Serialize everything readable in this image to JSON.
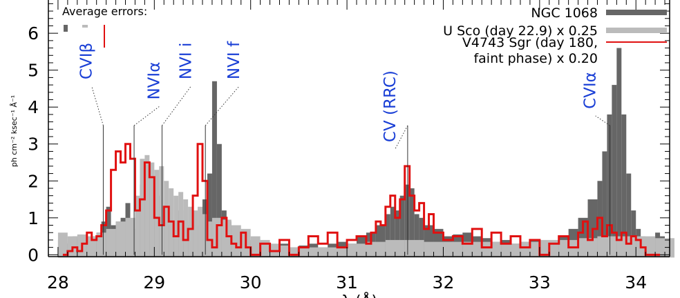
{
  "chart_data": {
    "type": "bar",
    "xlabel": "λ (Å)",
    "ylabel": "ph cm⁻² ksec⁻¹ Å⁻¹",
    "xlim": [
      27.9,
      34.35
    ],
    "ylim": [
      -0.05,
      6.9
    ],
    "x_ticks": [
      28,
      29,
      30,
      31,
      32,
      33,
      34
    ],
    "y_ticks": [
      0,
      1,
      2,
      3,
      4,
      5,
      6
    ],
    "errors_title": "Average errors:",
    "series": [
      {
        "name": "NGC 1068",
        "style": "filled-histogram",
        "color": "#666666",
        "x": [
          28.0,
          28.05,
          28.1,
          28.15,
          28.2,
          28.25,
          28.3,
          28.35,
          28.4,
          28.45,
          28.5,
          28.55,
          28.6,
          28.65,
          28.7,
          28.75,
          28.8,
          28.85,
          28.9,
          28.95,
          29.0,
          29.05,
          29.1,
          29.15,
          29.2,
          29.25,
          29.3,
          29.35,
          29.4,
          29.45,
          29.5,
          29.55,
          29.6,
          29.65,
          29.7,
          29.75,
          29.8,
          29.85,
          29.9,
          29.95,
          30.0,
          30.1,
          30.2,
          30.3,
          30.4,
          30.5,
          30.6,
          30.7,
          30.8,
          30.9,
          31.0,
          31.1,
          31.2,
          31.3,
          31.4,
          31.45,
          31.5,
          31.55,
          31.6,
          31.65,
          31.7,
          31.75,
          31.8,
          31.9,
          32.0,
          32.1,
          32.2,
          32.3,
          32.4,
          32.5,
          32.6,
          32.7,
          32.8,
          32.9,
          33.0,
          33.1,
          33.2,
          33.3,
          33.4,
          33.5,
          33.6,
          33.65,
          33.7,
          33.75,
          33.8,
          33.85,
          33.9,
          33.95,
          34.0,
          34.05,
          34.1,
          34.15,
          34.2,
          34.25,
          34.3
        ],
        "values": [
          0.4,
          0.3,
          0.35,
          0.5,
          0.45,
          0.3,
          0.4,
          0.5,
          0.6,
          0.9,
          1.3,
          0.8,
          0.9,
          1.0,
          1.4,
          0.7,
          1.2,
          1.9,
          2.5,
          2.0,
          1.6,
          1.1,
          1.0,
          0.8,
          0.9,
          1.2,
          0.9,
          0.8,
          0.7,
          0.8,
          1.5,
          2.2,
          4.7,
          3.0,
          1.2,
          0.9,
          0.7,
          0.5,
          0.4,
          0.3,
          0.4,
          0.3,
          0.25,
          0.3,
          0.2,
          0.25,
          0.3,
          0.2,
          0.3,
          0.35,
          0.3,
          0.5,
          0.6,
          0.8,
          1.1,
          1.3,
          1.2,
          1.6,
          1.9,
          1.8,
          1.1,
          1.0,
          0.8,
          0.7,
          0.5,
          0.55,
          0.6,
          0.5,
          0.45,
          0.35,
          0.4,
          0.3,
          0.35,
          0.4,
          0.3,
          0.35,
          0.5,
          0.7,
          1.0,
          1.5,
          2.0,
          2.8,
          3.8,
          4.6,
          5.6,
          3.8,
          2.2,
          1.2,
          0.7,
          0.5,
          0.4,
          0.45,
          0.6,
          0.5,
          0.4
        ]
      },
      {
        "name": "U Sco (day 22.9) x 0.25",
        "style": "filled-histogram",
        "color": "#bbbbbb",
        "x": [
          28.0,
          28.1,
          28.2,
          28.3,
          28.4,
          28.5,
          28.6,
          28.7,
          28.8,
          28.85,
          28.9,
          28.95,
          29.0,
          29.05,
          29.1,
          29.15,
          29.2,
          29.25,
          29.3,
          29.35,
          29.4,
          29.45,
          29.5,
          29.55,
          29.6,
          29.7,
          29.8,
          29.9,
          30.0,
          30.1,
          30.2,
          30.3,
          30.4,
          30.6,
          30.8,
          31.0,
          31.2,
          31.4,
          31.6,
          31.8,
          32.0,
          32.2,
          32.4,
          32.6,
          32.8,
          33.0,
          33.2,
          33.4,
          33.6,
          33.8,
          34.0,
          34.2
        ],
        "values": [
          0.6,
          0.5,
          0.55,
          0.5,
          0.6,
          0.7,
          0.9,
          1.0,
          1.6,
          2.6,
          2.7,
          2.5,
          2.3,
          2.4,
          2.0,
          1.8,
          1.6,
          1.7,
          1.5,
          1.3,
          1.2,
          1.3,
          1.1,
          0.9,
          1.0,
          0.95,
          0.8,
          0.7,
          0.5,
          0.4,
          0.3,
          0.25,
          0.2,
          0.2,
          0.2,
          0.3,
          0.35,
          0.4,
          0.4,
          0.35,
          0.35,
          0.35,
          0.35,
          0.3,
          0.35,
          0.4,
          0.4,
          0.45,
          0.5,
          0.5,
          0.5,
          0.45
        ]
      },
      {
        "name": "V4743 Sgr (day 180, faint phase) x 0.20",
        "style": "step-line",
        "color": "#e01010",
        "x": [
          28.05,
          28.1,
          28.15,
          28.2,
          28.25,
          28.3,
          28.35,
          28.4,
          28.45,
          28.5,
          28.55,
          28.6,
          28.65,
          28.7,
          28.75,
          28.8,
          28.85,
          28.9,
          28.95,
          29.0,
          29.05,
          29.1,
          29.15,
          29.2,
          29.25,
          29.3,
          29.35,
          29.4,
          29.45,
          29.5,
          29.55,
          29.6,
          29.65,
          29.7,
          29.75,
          29.8,
          29.85,
          29.9,
          29.95,
          30.0,
          30.1,
          30.2,
          30.3,
          30.4,
          30.5,
          30.6,
          30.7,
          30.8,
          30.9,
          31.0,
          31.1,
          31.2,
          31.25,
          31.3,
          31.35,
          31.4,
          31.45,
          31.5,
          31.55,
          31.6,
          31.65,
          31.7,
          31.75,
          31.8,
          31.85,
          31.9,
          32.0,
          32.1,
          32.2,
          32.3,
          32.4,
          32.5,
          32.6,
          32.7,
          32.8,
          32.9,
          33.0,
          33.1,
          33.2,
          33.3,
          33.4,
          33.45,
          33.5,
          33.55,
          33.6,
          33.65,
          33.7,
          33.75,
          33.8,
          33.85,
          33.9,
          33.95,
          34.0,
          34.05,
          34.1,
          34.2
        ],
        "values": [
          0.0,
          0.1,
          0.2,
          0.1,
          0.3,
          0.6,
          0.4,
          0.5,
          0.8,
          1.2,
          2.3,
          2.8,
          2.5,
          3.0,
          2.6,
          1.2,
          1.5,
          2.5,
          2.1,
          1.0,
          0.8,
          1.3,
          0.9,
          0.5,
          0.9,
          0.4,
          0.7,
          1.6,
          3.0,
          2.0,
          0.4,
          0.2,
          0.8,
          1.0,
          0.5,
          0.3,
          0.2,
          0.6,
          0.2,
          0.0,
          0.3,
          0.1,
          0.4,
          0.0,
          0.2,
          0.5,
          0.3,
          0.6,
          0.2,
          0.4,
          0.5,
          0.3,
          0.6,
          0.9,
          0.8,
          1.3,
          1.6,
          1.0,
          1.5,
          2.4,
          1.6,
          1.2,
          1.4,
          0.7,
          1.1,
          0.6,
          0.4,
          0.5,
          0.3,
          0.7,
          0.2,
          0.6,
          0.3,
          0.5,
          0.2,
          0.4,
          0.0,
          0.3,
          0.5,
          0.2,
          0.6,
          0.9,
          0.4,
          0.7,
          1.0,
          0.5,
          0.8,
          0.6,
          0.4,
          0.6,
          0.3,
          0.5,
          0.4,
          0.2,
          0.0,
          0.0
        ]
      }
    ],
    "annotations": [
      {
        "label": "CVIβ",
        "x": 28.47,
        "text_x": 28.35,
        "text_y": 4.75,
        "italic": false
      },
      {
        "label": "NVIα",
        "x": 28.79,
        "text_x": 29.05,
        "text_y": 4.2,
        "italic": false
      },
      {
        "label": "NVI i",
        "x": 29.08,
        "text_x": 29.38,
        "text_y": 4.75,
        "italic": false
      },
      {
        "label": "NVI f",
        "x": 29.53,
        "text_x": 29.88,
        "text_y": 4.75,
        "italic": false
      },
      {
        "label": "CV (RRC)",
        "x": 31.63,
        "text_x": 31.5,
        "text_y": 3.05,
        "italic": false
      },
      {
        "label": "CVIα",
        "x": 33.73,
        "text_x": 33.58,
        "text_y": 3.95,
        "italic": false
      }
    ],
    "grid": false,
    "legend_position": "top-right"
  }
}
